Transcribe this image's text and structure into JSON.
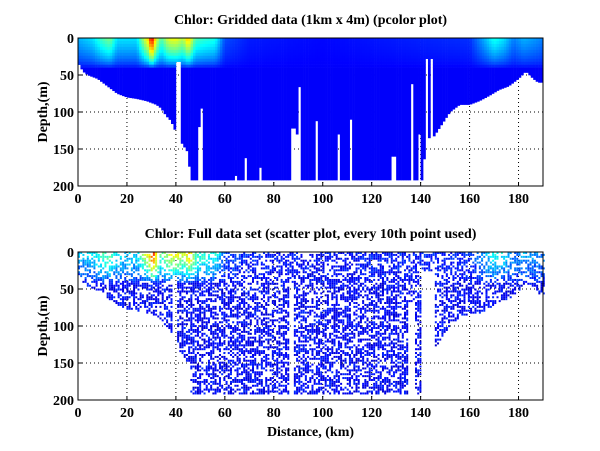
{
  "figure": {
    "background": "#ffffff"
  },
  "chart_data": [
    {
      "id": "gridded",
      "type": "heatmap",
      "title": "Chlor: Gridded data (1km x 4m) (pcolor plot)",
      "xlabel": "",
      "ylabel": "Depth,(m)",
      "xlim": [
        0,
        190
      ],
      "ylim": [
        200,
        0
      ],
      "xticks": [
        0,
        20,
        40,
        60,
        80,
        100,
        120,
        140,
        160,
        180
      ],
      "yticks": [
        0,
        50,
        100,
        150,
        200
      ],
      "grid": true,
      "colormap": "jet",
      "cell_size": {
        "km": 1,
        "m": 4
      },
      "bottom_depth_profile": {
        "km": [
          0,
          2,
          4,
          8,
          12,
          16,
          20,
          24,
          28,
          32,
          34,
          36,
          38,
          41,
          43,
          45,
          46,
          60,
          120,
          141,
          142,
          145,
          148,
          152,
          156,
          160,
          164,
          168,
          172,
          176,
          180,
          183,
          186,
          188,
          190
        ],
        "depth": [
          33,
          45,
          50,
          55,
          65,
          75,
          80,
          82,
          85,
          90,
          95,
          105,
          112,
          135,
          145,
          155,
          192,
          192,
          192,
          192,
          135,
          135,
          120,
          100,
          90,
          90,
          85,
          78,
          70,
          65,
          55,
          45,
          55,
          60,
          60
        ]
      },
      "data_gaps": [
        {
          "km": [
            40,
            42
          ],
          "from_depth": 30
        },
        {
          "km": [
            49,
            50
          ],
          "from_depth": 120
        },
        {
          "km": [
            50,
            51
          ],
          "from_depth": 95
        },
        {
          "km": [
            64,
            65
          ],
          "from_depth": 186
        },
        {
          "km": [
            68,
            69
          ],
          "from_depth": 162
        },
        {
          "km": [
            74,
            75
          ],
          "from_depth": 175
        },
        {
          "km": [
            87,
            89
          ],
          "from_depth": 122
        },
        {
          "km": [
            89,
            90
          ],
          "from_depth": 130
        },
        {
          "km": [
            90,
            91
          ],
          "from_depth": 66
        },
        {
          "km": [
            97,
            98
          ],
          "from_depth": 112
        },
        {
          "km": [
            106,
            107
          ],
          "from_depth": 130
        },
        {
          "km": [
            111,
            112
          ],
          "from_depth": 110
        },
        {
          "km": [
            128,
            130
          ],
          "from_depth": 160
        },
        {
          "km": [
            136,
            137
          ],
          "from_depth": 62
        },
        {
          "km": [
            139,
            140
          ],
          "from_depth": 130
        },
        {
          "km": [
            142,
            143
          ],
          "from_depth": 25
        },
        {
          "km": [
            144,
            145
          ],
          "from_depth": 25
        }
      ],
      "surface_chlor_normalized": {
        "km": [
          0,
          6,
          10,
          13,
          16,
          24,
          29,
          30,
          32,
          34,
          37,
          40,
          43,
          45,
          48,
          52,
          56,
          60,
          70,
          100,
          160,
          166,
          170,
          174,
          178,
          182,
          186,
          190
        ],
        "value": [
          0.3,
          0.35,
          0.45,
          0.5,
          0.35,
          0.35,
          0.7,
          0.95,
          0.6,
          0.45,
          0.6,
          0.62,
          0.55,
          0.7,
          0.45,
          0.42,
          0.4,
          0.2,
          0.15,
          0.13,
          0.17,
          0.3,
          0.4,
          0.35,
          0.25,
          0.3,
          0.28,
          0.25
        ]
      },
      "mixed_layer_depth_m": 40
    },
    {
      "id": "scatter",
      "type": "scatter",
      "title": "Chlor: Full data set (scatter plot, every 10th point used)",
      "xlabel": "Distance, (km)",
      "ylabel": "Depth,(m)",
      "xlim": [
        0,
        190
      ],
      "ylim": [
        200,
        0
      ],
      "xticks": [
        0,
        20,
        40,
        60,
        80,
        100,
        120,
        140,
        160,
        180
      ],
      "yticks": [
        0,
        50,
        100,
        150,
        200
      ],
      "grid": true,
      "colormap": "jet",
      "sampling": "every 10th point",
      "max_sample_depth_m": 190,
      "data_gaps": [
        {
          "km": [
            38,
            40
          ],
          "from_depth": 30
        },
        {
          "km": [
            86,
            88
          ],
          "from_depth": 40
        },
        {
          "km": [
            135,
            137
          ],
          "from_depth": 70
        },
        {
          "km": [
            140,
            145
          ],
          "from_depth": 25
        }
      ]
    }
  ]
}
